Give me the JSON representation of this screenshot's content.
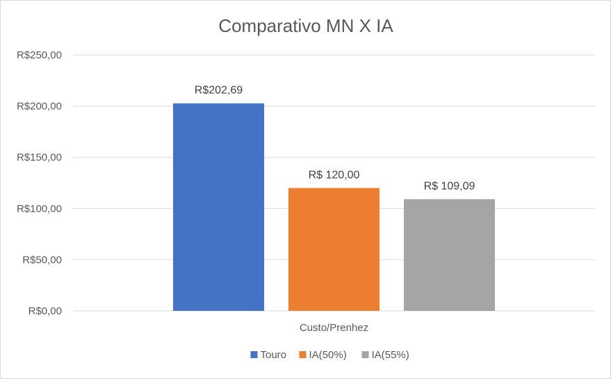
{
  "chart_data": {
    "type": "bar",
    "title": "Comparativo MN X IA",
    "categories": [
      "Custo/Prenhez"
    ],
    "series": [
      {
        "name": "Touro",
        "values": [
          202.69
        ],
        "color": "#4472C4",
        "data_label": "R$202,69"
      },
      {
        "name": "IA(50%)",
        "values": [
          120.0
        ],
        "color": "#ED7D31",
        "data_label": "R$ 120,00"
      },
      {
        "name": "IA(55%)",
        "values": [
          109.09
        ],
        "color": "#A5A5A5",
        "data_label": "R$ 109,09"
      }
    ],
    "ylim": [
      0,
      250
    ],
    "yticks": [
      0,
      50,
      100,
      150,
      200,
      250
    ],
    "ytick_labels": [
      "R$0,00",
      "R$50,00",
      "R$100,00",
      "R$150,00",
      "R$200,00",
      "R$250,00"
    ],
    "grid": true,
    "legend": "bottom"
  }
}
